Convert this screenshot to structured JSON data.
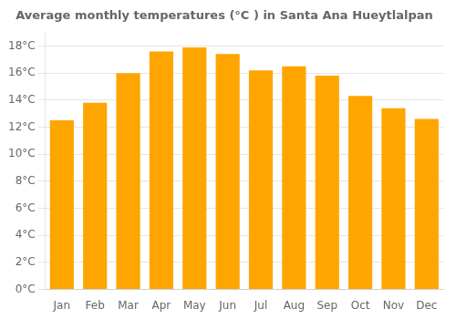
{
  "chart_data": {
    "type": "bar",
    "title": "Average monthly temperatures (°C ) in Santa Ana Hueytlalpan",
    "categories": [
      "Jan",
      "Feb",
      "Mar",
      "Apr",
      "May",
      "Jun",
      "Jul",
      "Aug",
      "Sep",
      "Oct",
      "Nov",
      "Dec"
    ],
    "values": [
      12.5,
      13.8,
      16.0,
      17.6,
      17.9,
      17.4,
      16.2,
      16.5,
      15.8,
      14.3,
      13.4,
      12.6
    ],
    "color": "#FFA500",
    "ylim": [
      0,
      19
    ],
    "yticks": [
      {
        "value": 0,
        "label": "0°C"
      },
      {
        "value": 2,
        "label": "2°C"
      },
      {
        "value": 4,
        "label": "4°C"
      },
      {
        "value": 6,
        "label": "6°C"
      },
      {
        "value": 8,
        "label": "8°C"
      },
      {
        "value": 10,
        "label": "10°C"
      },
      {
        "value": 12,
        "label": "12°C"
      },
      {
        "value": 14,
        "label": "14°C"
      },
      {
        "value": 16,
        "label": "16°C"
      },
      {
        "value": 18,
        "label": "18°C"
      }
    ],
    "grid": true
  }
}
